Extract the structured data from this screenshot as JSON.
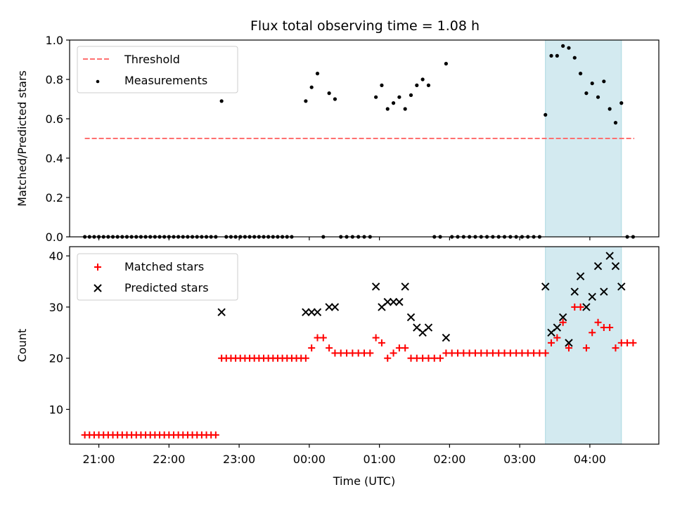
{
  "title": "Flux total observing time = 1.08 h",
  "xlabel": "Time (UTC)",
  "colors": {
    "threshold": "#ff7070",
    "measurement": "#000000",
    "matched": "#ff0000",
    "predicted": "#000000",
    "highlight": "#d3eaf0",
    "highlight_edge": "#a9d8e2"
  },
  "chart_data": [
    {
      "type": "scatter",
      "ylabel": "Matched/Predicted stars",
      "xlim": [
        "20:35",
        "04:59"
      ],
      "ylim": [
        0,
        1.0
      ],
      "yticks": [
        0.0,
        0.2,
        0.4,
        0.6,
        0.8,
        1.0
      ],
      "ytick_labels": [
        "0.0",
        "0.2",
        "0.4",
        "0.6",
        "0.8",
        "1.0"
      ],
      "xticks": [
        "21:00",
        "22:00",
        "23:00",
        "00:00",
        "01:00",
        "02:00",
        "03:00",
        "04:00"
      ],
      "legend_position": "top-left",
      "highlight_span": [
        "03:22",
        "04:27"
      ],
      "threshold": {
        "name": "Threshold",
        "style": "dashed",
        "x": [
          "20:48",
          "04:38"
        ],
        "y": 0.5
      },
      "series": [
        {
          "name": "Measurements",
          "points": [
            [
              "20:48",
              0
            ],
            [
              "20:52",
              0
            ],
            [
              "20:56",
              0
            ],
            [
              "21:00",
              0
            ],
            [
              "21:04",
              0
            ],
            [
              "21:08",
              0
            ],
            [
              "21:12",
              0
            ],
            [
              "21:16",
              0
            ],
            [
              "21:20",
              0
            ],
            [
              "21:24",
              0
            ],
            [
              "21:28",
              0
            ],
            [
              "21:32",
              0
            ],
            [
              "21:36",
              0
            ],
            [
              "21:40",
              0
            ],
            [
              "21:44",
              0
            ],
            [
              "21:48",
              0
            ],
            [
              "21:52",
              0
            ],
            [
              "21:56",
              0
            ],
            [
              "22:00",
              0
            ],
            [
              "22:04",
              0
            ],
            [
              "22:08",
              0
            ],
            [
              "22:12",
              0
            ],
            [
              "22:16",
              0
            ],
            [
              "22:20",
              0
            ],
            [
              "22:24",
              0
            ],
            [
              "22:28",
              0
            ],
            [
              "22:32",
              0
            ],
            [
              "22:36",
              0
            ],
            [
              "22:40",
              0
            ],
            [
              "22:45",
              0.69
            ],
            [
              "22:49",
              0
            ],
            [
              "22:53",
              0
            ],
            [
              "22:57",
              0
            ],
            [
              "23:01",
              0
            ],
            [
              "23:05",
              0
            ],
            [
              "23:09",
              0
            ],
            [
              "23:13",
              0
            ],
            [
              "23:17",
              0
            ],
            [
              "23:21",
              0
            ],
            [
              "23:25",
              0
            ],
            [
              "23:29",
              0
            ],
            [
              "23:33",
              0
            ],
            [
              "23:37",
              0
            ],
            [
              "23:41",
              0
            ],
            [
              "23:45",
              0
            ],
            [
              "23:57",
              0.69
            ],
            [
              "00:02",
              0.76
            ],
            [
              "00:07",
              0.83
            ],
            [
              "00:12",
              0
            ],
            [
              "00:17",
              0.73
            ],
            [
              "00:22",
              0.7
            ],
            [
              "00:27",
              0
            ],
            [
              "00:32",
              0
            ],
            [
              "00:37",
              0
            ],
            [
              "00:42",
              0
            ],
            [
              "00:47",
              0
            ],
            [
              "00:52",
              0
            ],
            [
              "00:57",
              0.71
            ],
            [
              "01:02",
              0.77
            ],
            [
              "01:07",
              0.65
            ],
            [
              "01:12",
              0.68
            ],
            [
              "01:17",
              0.71
            ],
            [
              "01:22",
              0.65
            ],
            [
              "01:27",
              0.72
            ],
            [
              "01:32",
              0.77
            ],
            [
              "01:37",
              0.8
            ],
            [
              "01:42",
              0.77
            ],
            [
              "01:47",
              0
            ],
            [
              "01:52",
              0
            ],
            [
              "01:57",
              0.88
            ],
            [
              "02:02",
              0
            ],
            [
              "02:07",
              0
            ],
            [
              "02:12",
              0
            ],
            [
              "02:17",
              0
            ],
            [
              "02:22",
              0
            ],
            [
              "02:27",
              0
            ],
            [
              "02:32",
              0
            ],
            [
              "02:37",
              0
            ],
            [
              "02:42",
              0
            ],
            [
              "02:47",
              0
            ],
            [
              "02:52",
              0
            ],
            [
              "02:57",
              0
            ],
            [
              "03:02",
              0
            ],
            [
              "03:07",
              0
            ],
            [
              "03:12",
              0
            ],
            [
              "03:17",
              0
            ],
            [
              "03:22",
              0.62
            ],
            [
              "03:27",
              0.92
            ],
            [
              "03:32",
              0.92
            ],
            [
              "03:37",
              0.97
            ],
            [
              "03:42",
              0.96
            ],
            [
              "03:47",
              0.91
            ],
            [
              "03:52",
              0.83
            ],
            [
              "03:57",
              0.73
            ],
            [
              "04:02",
              0.78
            ],
            [
              "04:07",
              0.71
            ],
            [
              "04:12",
              0.79
            ],
            [
              "04:17",
              0.65
            ],
            [
              "04:22",
              0.58
            ],
            [
              "04:27",
              0.68
            ],
            [
              "04:32",
              0
            ],
            [
              "04:37",
              0
            ]
          ]
        }
      ]
    },
    {
      "type": "scatter",
      "ylabel": "Count",
      "xlim": [
        "20:35",
        "04:59"
      ],
      "ylim": [
        3.2,
        41.8
      ],
      "yticks": [
        10,
        20,
        30,
        40
      ],
      "ytick_labels": [
        "10",
        "20",
        "30",
        "40"
      ],
      "xticks": [
        "21:00",
        "22:00",
        "23:00",
        "00:00",
        "01:00",
        "02:00",
        "03:00",
        "04:00"
      ],
      "xtick_labels": [
        "21:00",
        "22:00",
        "23:00",
        "00:00",
        "01:00",
        "02:00",
        "03:00",
        "04:00"
      ],
      "legend_position": "top-left",
      "highlight_span": [
        "03:22",
        "04:27"
      ],
      "series": [
        {
          "name": "Matched stars",
          "marker": "plus",
          "points": [
            [
              "20:48",
              5
            ],
            [
              "20:52",
              5
            ],
            [
              "20:56",
              5
            ],
            [
              "21:00",
              5
            ],
            [
              "21:04",
              5
            ],
            [
              "21:08",
              5
            ],
            [
              "21:12",
              5
            ],
            [
              "21:16",
              5
            ],
            [
              "21:20",
              5
            ],
            [
              "21:24",
              5
            ],
            [
              "21:28",
              5
            ],
            [
              "21:32",
              5
            ],
            [
              "21:36",
              5
            ],
            [
              "21:40",
              5
            ],
            [
              "21:44",
              5
            ],
            [
              "21:48",
              5
            ],
            [
              "21:52",
              5
            ],
            [
              "21:56",
              5
            ],
            [
              "22:00",
              5
            ],
            [
              "22:04",
              5
            ],
            [
              "22:08",
              5
            ],
            [
              "22:12",
              5
            ],
            [
              "22:16",
              5
            ],
            [
              "22:20",
              5
            ],
            [
              "22:24",
              5
            ],
            [
              "22:28",
              5
            ],
            [
              "22:32",
              5
            ],
            [
              "22:36",
              5
            ],
            [
              "22:40",
              5
            ],
            [
              "22:45",
              20
            ],
            [
              "22:49",
              20
            ],
            [
              "22:53",
              20
            ],
            [
              "22:57",
              20
            ],
            [
              "23:01",
              20
            ],
            [
              "23:05",
              20
            ],
            [
              "23:09",
              20
            ],
            [
              "23:13",
              20
            ],
            [
              "23:17",
              20
            ],
            [
              "23:21",
              20
            ],
            [
              "23:25",
              20
            ],
            [
              "23:29",
              20
            ],
            [
              "23:33",
              20
            ],
            [
              "23:37",
              20
            ],
            [
              "23:41",
              20
            ],
            [
              "23:45",
              20
            ],
            [
              "23:49",
              20
            ],
            [
              "23:53",
              20
            ],
            [
              "23:57",
              20
            ],
            [
              "00:02",
              22
            ],
            [
              "00:07",
              24
            ],
            [
              "00:12",
              24
            ],
            [
              "00:17",
              22
            ],
            [
              "00:22",
              21
            ],
            [
              "00:27",
              21
            ],
            [
              "00:32",
              21
            ],
            [
              "00:37",
              21
            ],
            [
              "00:42",
              21
            ],
            [
              "00:47",
              21
            ],
            [
              "00:52",
              21
            ],
            [
              "00:57",
              24
            ],
            [
              "01:02",
              23
            ],
            [
              "01:07",
              20
            ],
            [
              "01:12",
              21
            ],
            [
              "01:17",
              22
            ],
            [
              "01:22",
              22
            ],
            [
              "01:27",
              20
            ],
            [
              "01:32",
              20
            ],
            [
              "01:37",
              20
            ],
            [
              "01:42",
              20
            ],
            [
              "01:47",
              20
            ],
            [
              "01:52",
              20
            ],
            [
              "01:57",
              21
            ],
            [
              "02:02",
              21
            ],
            [
              "02:07",
              21
            ],
            [
              "02:12",
              21
            ],
            [
              "02:17",
              21
            ],
            [
              "02:22",
              21
            ],
            [
              "02:27",
              21
            ],
            [
              "02:32",
              21
            ],
            [
              "02:37",
              21
            ],
            [
              "02:42",
              21
            ],
            [
              "02:47",
              21
            ],
            [
              "02:52",
              21
            ],
            [
              "02:57",
              21
            ],
            [
              "03:02",
              21
            ],
            [
              "03:07",
              21
            ],
            [
              "03:12",
              21
            ],
            [
              "03:17",
              21
            ],
            [
              "03:22",
              21
            ],
            [
              "03:27",
              23
            ],
            [
              "03:32",
              24
            ],
            [
              "03:37",
              27
            ],
            [
              "03:42",
              22
            ],
            [
              "03:47",
              30
            ],
            [
              "03:52",
              30
            ],
            [
              "03:57",
              22
            ],
            [
              "04:02",
              25
            ],
            [
              "04:07",
              27
            ],
            [
              "04:12",
              26
            ],
            [
              "04:17",
              26
            ],
            [
              "04:22",
              22
            ],
            [
              "04:27",
              23
            ],
            [
              "04:32",
              23
            ],
            [
              "04:37",
              23
            ]
          ]
        },
        {
          "name": "Predicted stars",
          "marker": "x",
          "points": [
            [
              "22:45",
              29
            ],
            [
              "23:57",
              29
            ],
            [
              "00:02",
              29
            ],
            [
              "00:07",
              29
            ],
            [
              "00:17",
              30
            ],
            [
              "00:22",
              30
            ],
            [
              "00:57",
              34
            ],
            [
              "01:02",
              30
            ],
            [
              "01:07",
              31
            ],
            [
              "01:12",
              31
            ],
            [
              "01:17",
              31
            ],
            [
              "01:22",
              34
            ],
            [
              "01:27",
              28
            ],
            [
              "01:32",
              26
            ],
            [
              "01:37",
              25
            ],
            [
              "01:42",
              26
            ],
            [
              "01:57",
              24
            ],
            [
              "03:22",
              34
            ],
            [
              "03:27",
              25
            ],
            [
              "03:32",
              26
            ],
            [
              "03:37",
              28
            ],
            [
              "03:42",
              23
            ],
            [
              "03:47",
              33
            ],
            [
              "03:52",
              36
            ],
            [
              "03:57",
              30
            ],
            [
              "04:02",
              32
            ],
            [
              "04:07",
              38
            ],
            [
              "04:12",
              33
            ],
            [
              "04:17",
              40
            ],
            [
              "04:22",
              38
            ],
            [
              "04:27",
              34
            ]
          ]
        }
      ]
    }
  ]
}
